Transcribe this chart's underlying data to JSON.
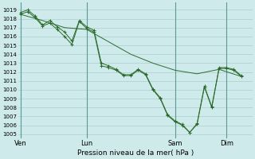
{
  "xlabel": "Pression niveau de la mer( hPa )",
  "background_color": "#ceeaea",
  "grid_color": "#aacece",
  "line_color": "#2d6b2d",
  "vline_color": "#5a9a9a",
  "ylim_min": 1004.5,
  "ylim_max": 1019.8,
  "xlim_min": -0.3,
  "xlim_max": 31.5,
  "yticks": [
    1005,
    1006,
    1007,
    1008,
    1009,
    1010,
    1011,
    1012,
    1013,
    1014,
    1015,
    1016,
    1017,
    1018,
    1019
  ],
  "xtick_positions": [
    0,
    9,
    21,
    28
  ],
  "xtick_labels": [
    "Ven",
    "Lun",
    "Sam",
    "Dim"
  ],
  "vline_positions": [
    0,
    9,
    21,
    28
  ],
  "smooth_x": [
    0,
    3,
    6,
    9,
    12,
    15,
    18,
    21,
    24,
    27,
    30
  ],
  "smooth_y": [
    1018.5,
    1017.8,
    1017.0,
    1016.8,
    1015.4,
    1014.0,
    1013.0,
    1012.2,
    1011.8,
    1012.3,
    1011.5
  ],
  "line2_x": [
    0,
    1,
    2,
    3,
    4,
    5,
    6,
    7,
    8,
    9,
    10,
    11,
    12,
    13,
    14,
    15,
    16,
    17,
    18,
    19,
    20,
    21,
    22,
    23,
    24,
    25,
    26,
    27,
    28,
    29,
    30
  ],
  "line2_y": [
    1018.5,
    1018.8,
    1018.1,
    1017.2,
    1017.5,
    1016.8,
    1016.0,
    1015.1,
    1017.7,
    1016.9,
    1016.5,
    1012.7,
    1012.5,
    1012.2,
    1011.6,
    1011.6,
    1012.2,
    1011.7,
    1010.0,
    1009.0,
    1007.1,
    1006.4,
    1006.0,
    1005.2,
    1006.1,
    1010.3,
    1008.0,
    1012.4,
    1012.4,
    1012.2,
    1011.5
  ],
  "line3_x": [
    0,
    1,
    2,
    3,
    4,
    5,
    6,
    7,
    8,
    9,
    10,
    11,
    12,
    13,
    14,
    15,
    16,
    17,
    18,
    19,
    20,
    21,
    22,
    23,
    24,
    25,
    26,
    27,
    28,
    29,
    30
  ],
  "line3_y": [
    1018.7,
    1019.0,
    1018.3,
    1017.3,
    1017.8,
    1017.1,
    1016.5,
    1015.5,
    1017.8,
    1017.1,
    1016.7,
    1013.0,
    1012.7,
    1012.3,
    1011.7,
    1011.7,
    1012.3,
    1011.8,
    1010.1,
    1009.1,
    1007.2,
    1006.5,
    1006.1,
    1005.2,
    1006.2,
    1010.4,
    1008.1,
    1012.5,
    1012.5,
    1012.3,
    1011.6
  ],
  "ytick_fontsize": 5.0,
  "xtick_fontsize": 6.0,
  "xlabel_fontsize": 6.5
}
